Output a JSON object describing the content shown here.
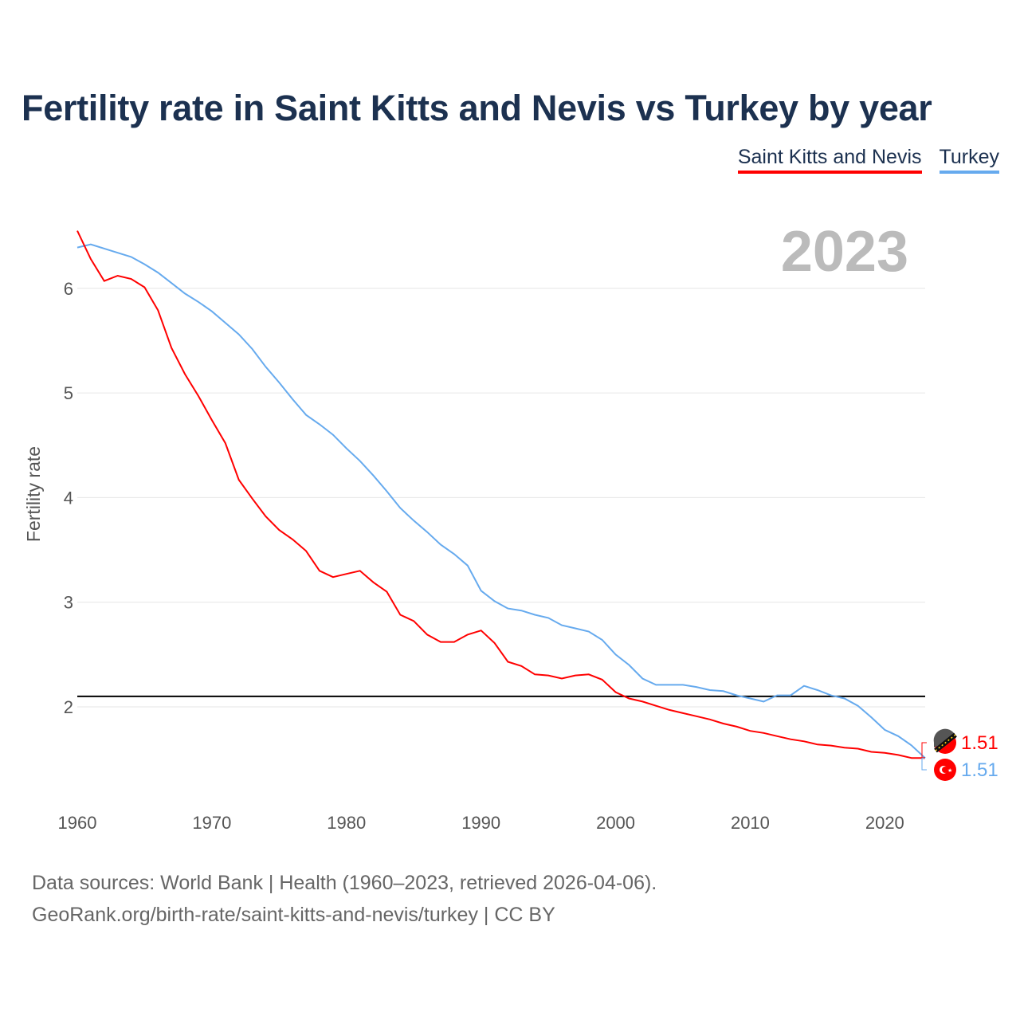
{
  "chart_data": {
    "type": "line",
    "title": "Fertility rate in Saint Kitts and Nevis vs Turkey by year",
    "xlabel": "",
    "ylabel": "Fertility rate",
    "year_label": "2023",
    "xlim": [
      1960,
      2023
    ],
    "ylim": [
      1.3,
      6.7
    ],
    "x_ticks": [
      1960,
      1970,
      1980,
      1990,
      2000,
      2010,
      2020
    ],
    "y_ticks": [
      2,
      3,
      4,
      5,
      6
    ],
    "grid": true,
    "legend_position": "top-right",
    "reference_line": 2.1,
    "x": [
      1960,
      1961,
      1962,
      1963,
      1964,
      1965,
      1966,
      1967,
      1968,
      1969,
      1970,
      1971,
      1972,
      1973,
      1974,
      1975,
      1976,
      1977,
      1978,
      1979,
      1980,
      1981,
      1982,
      1983,
      1984,
      1985,
      1986,
      1987,
      1988,
      1989,
      1990,
      1991,
      1992,
      1993,
      1994,
      1995,
      1996,
      1997,
      1998,
      1999,
      2000,
      2001,
      2002,
      2003,
      2004,
      2005,
      2006,
      2007,
      2008,
      2009,
      2010,
      2011,
      2012,
      2013,
      2014,
      2015,
      2016,
      2017,
      2018,
      2019,
      2020,
      2021,
      2022,
      2023
    ],
    "series": [
      {
        "name": "Saint Kitts and Nevis",
        "color": "#ff0000",
        "end_label": "1.51",
        "values": [
          6.55,
          6.28,
          6.07,
          6.12,
          6.09,
          6.01,
          5.79,
          5.43,
          5.18,
          4.97,
          4.74,
          4.52,
          4.17,
          3.99,
          3.82,
          3.69,
          3.6,
          3.49,
          3.3,
          3.24,
          3.27,
          3.3,
          3.19,
          3.1,
          2.88,
          2.82,
          2.69,
          2.62,
          2.62,
          2.69,
          2.73,
          2.61,
          2.43,
          2.39,
          2.31,
          2.3,
          2.27,
          2.3,
          2.31,
          2.26,
          2.14,
          2.08,
          2.05,
          2.01,
          1.97,
          1.94,
          1.91,
          1.88,
          1.84,
          1.81,
          1.77,
          1.75,
          1.72,
          1.69,
          1.67,
          1.64,
          1.63,
          1.61,
          1.6,
          1.57,
          1.56,
          1.54,
          1.51,
          1.51
        ]
      },
      {
        "name": "Turkey",
        "color": "#66aaee",
        "end_label": "1.51",
        "values": [
          6.39,
          6.42,
          6.38,
          6.34,
          6.3,
          6.23,
          6.15,
          6.05,
          5.95,
          5.87,
          5.78,
          5.67,
          5.56,
          5.42,
          5.25,
          5.1,
          4.94,
          4.79,
          4.7,
          4.6,
          4.47,
          4.35,
          4.21,
          4.06,
          3.9,
          3.78,
          3.67,
          3.55,
          3.46,
          3.35,
          3.11,
          3.01,
          2.94,
          2.92,
          2.88,
          2.85,
          2.78,
          2.75,
          2.72,
          2.64,
          2.5,
          2.4,
          2.27,
          2.21,
          2.21,
          2.21,
          2.19,
          2.16,
          2.15,
          2.11,
          2.08,
          2.05,
          2.11,
          2.11,
          2.2,
          2.16,
          2.11,
          2.08,
          2.01,
          1.9,
          1.78,
          1.72,
          1.63,
          1.51
        ]
      }
    ]
  },
  "footer": {
    "line1": "Data sources: World Bank | Health (1960–2023, retrieved 2026-04-06).",
    "line2": "GeoRank.org/birth-rate/saint-kitts-and-nevis/turkey | CC BY"
  }
}
